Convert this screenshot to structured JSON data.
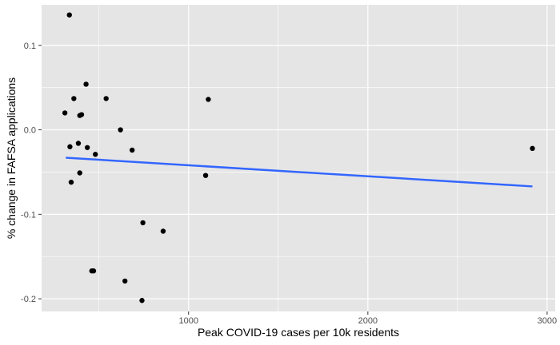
{
  "chart_data": {
    "type": "scatter",
    "xlabel": "Peak COVID-19 cases per 10k residents",
    "ylabel": "% change in FAFSA applications",
    "xlim": [
      180,
      3045
    ],
    "ylim": [
      -0.215,
      0.148
    ],
    "x_ticks": [
      {
        "value": 1000,
        "label": "1000"
      },
      {
        "value": 2000,
        "label": "2000"
      },
      {
        "value": 3000,
        "label": "3000"
      }
    ],
    "x_minor_ticks": [
      500,
      1500,
      2500
    ],
    "y_ticks": [
      {
        "value": 0.1,
        "label": "0.1"
      },
      {
        "value": 0.0,
        "label": "0.0"
      },
      {
        "value": -0.1,
        "label": "-0.1"
      },
      {
        "value": -0.2,
        "label": "-0.2"
      }
    ],
    "y_minor_ticks": [
      0.05,
      -0.05,
      -0.15
    ],
    "grid": true,
    "point_color": "#000000",
    "line_color": "#3366ff",
    "panel_color": "#e5e5e5",
    "grid_color": "#ffffff",
    "points": [
      {
        "x": 335,
        "y": 0.136
      },
      {
        "x": 310,
        "y": 0.02
      },
      {
        "x": 360,
        "y": 0.037
      },
      {
        "x": 428,
        "y": 0.054
      },
      {
        "x": 393,
        "y": 0.017
      },
      {
        "x": 403,
        "y": 0.018
      },
      {
        "x": 540,
        "y": 0.037
      },
      {
        "x": 620,
        "y": 0.0
      },
      {
        "x": 338,
        "y": -0.02
      },
      {
        "x": 385,
        "y": -0.016
      },
      {
        "x": 435,
        "y": -0.021
      },
      {
        "x": 480,
        "y": -0.029
      },
      {
        "x": 685,
        "y": -0.024
      },
      {
        "x": 393,
        "y": -0.051
      },
      {
        "x": 345,
        "y": -0.062
      },
      {
        "x": 1110,
        "y": 0.036
      },
      {
        "x": 1095,
        "y": -0.054
      },
      {
        "x": 2918,
        "y": -0.022
      },
      {
        "x": 745,
        "y": -0.11
      },
      {
        "x": 858,
        "y": -0.12
      },
      {
        "x": 460,
        "y": -0.167
      },
      {
        "x": 470,
        "y": -0.167
      },
      {
        "x": 645,
        "y": -0.179
      },
      {
        "x": 740,
        "y": -0.202
      }
    ],
    "trend_line": {
      "x": [
        315,
        2918
      ],
      "y": [
        -0.033,
        -0.067
      ]
    }
  }
}
